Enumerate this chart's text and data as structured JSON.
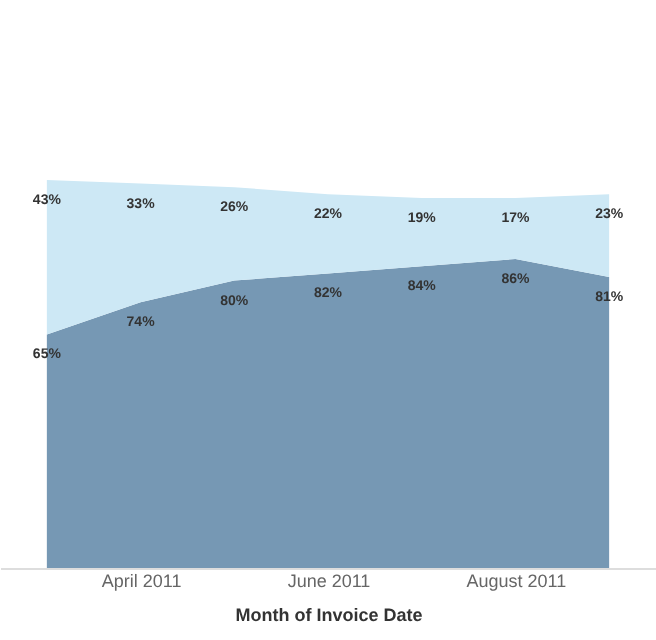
{
  "chart_data": {
    "type": "area",
    "xlabel": "Month of Invoice Date",
    "stacked": true,
    "categories": [
      null,
      "April 2011",
      null,
      "June 2011",
      null,
      "August 2011",
      null
    ],
    "series": [
      {
        "color": "#7698b4",
        "values": [
          65,
          74,
          80,
          82,
          84,
          86,
          81
        ],
        "value_labels": [
          "65%",
          "74%",
          "80%",
          "82%",
          "84%",
          "86%",
          "81%"
        ]
      },
      {
        "color": "#cde8f5",
        "values": [
          43,
          33,
          26,
          22,
          19,
          17,
          23
        ],
        "value_labels": [
          "43%",
          "33%",
          "26%",
          "22%",
          "19%",
          "17%",
          "23%"
        ]
      }
    ]
  }
}
